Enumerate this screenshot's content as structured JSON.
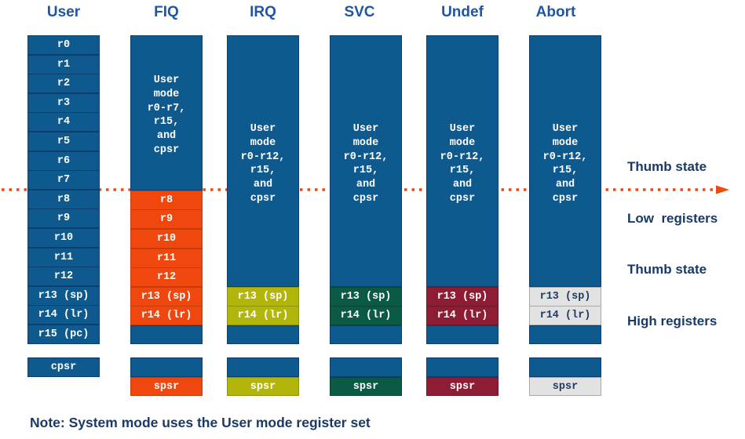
{
  "columns": [
    {
      "header": "User",
      "registers": [
        "r0",
        "r1",
        "r2",
        "r3",
        "r4",
        "r5",
        "r6",
        "r7",
        "r8",
        "r9",
        "r10",
        "r11",
        "r12",
        "r13 (sp)",
        "r14 (lr)",
        "r15 (pc)"
      ],
      "status": "cpsr"
    },
    {
      "header": "FIQ",
      "shared": [
        "User",
        "mode",
        "r0-r7,",
        "r15,",
        "and",
        "cpsr"
      ],
      "banked": [
        "r8",
        "r9",
        "r10",
        "r11",
        "r12",
        "r13 (sp)",
        "r14 (lr)"
      ],
      "spsr": "spsr",
      "color": "#f0470e"
    },
    {
      "header": "IRQ",
      "shared": [
        "User",
        "mode",
        "r0-r12,",
        "r15,",
        "and",
        "cpsr"
      ],
      "banked": [
        "r13 (sp)",
        "r14 (lr)"
      ],
      "spsr": "spsr",
      "color": "#b2b60a"
    },
    {
      "header": "SVC",
      "shared": [
        "User",
        "mode",
        "r0-r12,",
        "r15,",
        "and",
        "cpsr"
      ],
      "banked": [
        "r13 (sp)",
        "r14 (lr)"
      ],
      "spsr": "spsr",
      "color": "#0b5a45"
    },
    {
      "header": "Undef",
      "shared": [
        "User",
        "mode",
        "r0-r12,",
        "r15,",
        "and",
        "cpsr"
      ],
      "banked": [
        "r13 (sp)",
        "r14 (lr)"
      ],
      "spsr": "spsr",
      "color": "#8e1c34"
    },
    {
      "header": "Abort",
      "shared": [
        "User",
        "mode",
        "r0-r12,",
        "r15,",
        "and",
        "cpsr"
      ],
      "banked": [
        "r13 (sp)",
        "r14 (lr)"
      ],
      "spsr": "spsr",
      "color": "#e2e2e2"
    }
  ],
  "legend": {
    "low": [
      "Thumb state",
      "Low  registers"
    ],
    "high": [
      "Thumb state",
      "High registers"
    ]
  },
  "note": "Note: System mode uses the User mode register set",
  "colors": {
    "register_blue": "#0e5a8e",
    "arrow_orange": "#f0470e",
    "text_blue": "#1f55a5"
  }
}
